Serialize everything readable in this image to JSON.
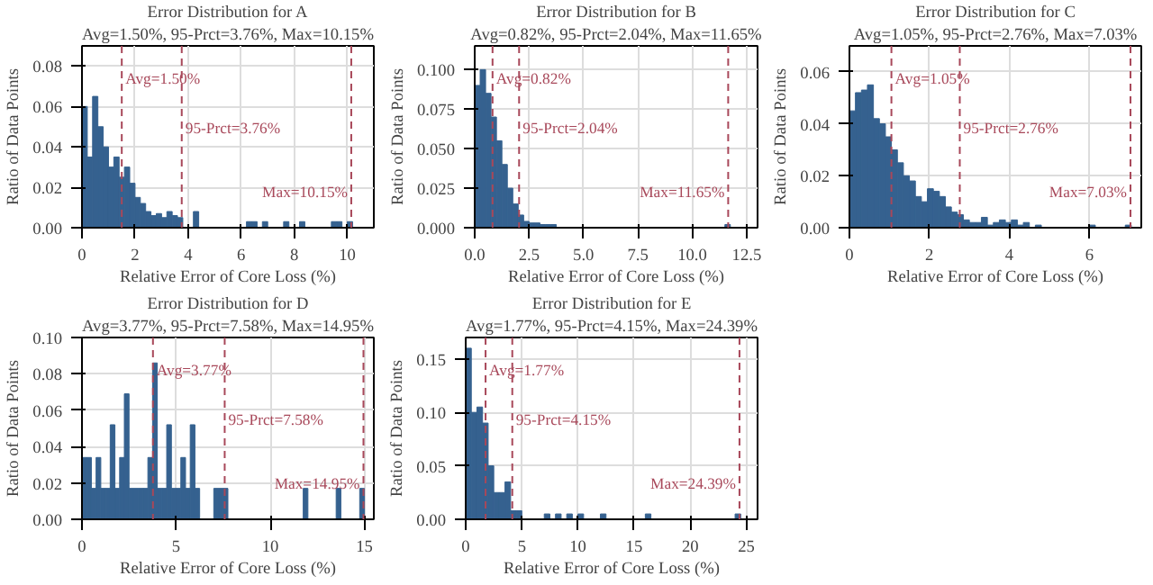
{
  "chart_data": [
    {
      "type": "histogram",
      "title": "Error Distribution for A",
      "subtitle": "Avg=1.50%, 95-Prct=3.76%, Max=10.15%",
      "xlabel": "Relative Error of Core Loss (%)",
      "ylabel": "Ratio of Data Points",
      "color": "#35618f",
      "grid": true,
      "bins": [
        0,
        0.2,
        0.4,
        0.6,
        0.8,
        1.0,
        1.2,
        1.4,
        1.6,
        1.8,
        2.0,
        2.2,
        2.4,
        2.6,
        2.8,
        3.0,
        3.2,
        3.4,
        3.6,
        3.8,
        4.0,
        4.2,
        4.4,
        4.6,
        4.8,
        5.0,
        5.2,
        5.4,
        5.6,
        5.8,
        6.0,
        6.2,
        6.4,
        6.6,
        6.8,
        7.0,
        7.2,
        7.4,
        7.6,
        7.8,
        8.0,
        8.2,
        8.4,
        8.6,
        8.8,
        9.0,
        9.2,
        9.4,
        9.6,
        9.8,
        10.0,
        10.2
      ],
      "values": [
        0.06,
        0.035,
        0.065,
        0.05,
        0.04,
        0.03,
        0.035,
        0.025,
        0.03,
        0.022,
        0.015,
        0.012,
        0.008,
        0.006,
        0.007,
        0.005,
        0.008,
        0.006,
        0.005,
        0,
        0,
        0.008,
        0,
        0,
        0,
        0,
        0,
        0,
        0,
        0,
        0,
        0.003,
        0.003,
        0,
        0.003,
        0,
        0,
        0,
        0.003,
        0,
        0,
        0.003,
        0,
        0,
        0,
        0,
        0,
        0.003,
        0.003,
        0,
        0.003
      ],
      "xlim": [
        0,
        11
      ],
      "ylim": [
        0,
        0.09
      ],
      "xticks": [
        0,
        2,
        4,
        6,
        8,
        10
      ],
      "yticks": [
        {
          "value": 0,
          "label": "0.00"
        },
        {
          "value": 0.02,
          "label": "0.02"
        },
        {
          "value": 0.04,
          "label": "0.04"
        },
        {
          "value": 0.06,
          "label": "0.06"
        },
        {
          "value": 0.08,
          "label": "0.08"
        }
      ],
      "ref_lines": [
        {
          "axis": "x",
          "value": 1.5,
          "label": "Avg=1.50%",
          "color": "#a8485a",
          "line_style": "dashed"
        },
        {
          "axis": "x",
          "value": 3.76,
          "label": "95-Prct=3.76%",
          "color": "#a8485a",
          "line_style": "dashed"
        },
        {
          "axis": "x",
          "value": 10.15,
          "label": "Max=10.15%",
          "color": "#a8485a",
          "line_style": "dashed"
        }
      ]
    },
    {
      "type": "histogram",
      "title": "Error Distribution for B",
      "subtitle": "Avg=0.82%, 95-Prct=2.04%, Max=11.65%",
      "xlabel": "Relative Error of Core Loss (%)",
      "ylabel": "Ratio of Data Points",
      "color": "#35618f",
      "grid": true,
      "bins": [
        0,
        0.25,
        0.5,
        0.75,
        1.0,
        1.25,
        1.5,
        1.75,
        2.0,
        2.25,
        2.5,
        2.75,
        3.0,
        3.25,
        3.5,
        3.75,
        4.0,
        4.25,
        4.5,
        4.75,
        5.0,
        5.25,
        5.5,
        5.75,
        6.0,
        6.25,
        6.5,
        6.75,
        7.0,
        7.25,
        7.5,
        7.75,
        8.0,
        8.25,
        8.5,
        8.75,
        9.0,
        9.25,
        9.5,
        9.75,
        10.0,
        10.25,
        10.5,
        10.75,
        11.0,
        11.25,
        11.5,
        11.75
      ],
      "values": [
        0.09,
        0.1,
        0.085,
        0.07,
        0.055,
        0.04,
        0.025,
        0.015,
        0.008,
        0.004,
        0.003,
        0.003,
        0.002,
        0.002,
        0.002,
        0,
        0,
        0,
        0,
        0,
        0,
        0,
        0,
        0,
        0,
        0,
        0,
        0,
        0,
        0,
        0,
        0,
        0,
        0,
        0,
        0,
        0,
        0,
        0,
        0,
        0,
        0,
        0,
        0,
        0,
        0,
        0.002
      ],
      "xlim": [
        0,
        13
      ],
      "ylim": [
        0,
        0.115
      ],
      "xticks": [
        {
          "value": 0,
          "label": "0.0"
        },
        2.5,
        {
          "value": 5,
          "label": "5.0"
        },
        7.5,
        {
          "value": 10,
          "label": "10.0"
        },
        12.5
      ],
      "yticks": [
        {
          "value": 0,
          "label": "0.000"
        },
        0.025,
        {
          "value": 0.05,
          "label": "0.050"
        },
        0.075,
        {
          "value": 0.1,
          "label": "0.100"
        }
      ],
      "ref_lines": [
        {
          "axis": "x",
          "value": 0.82,
          "label": "Avg=0.82%",
          "color": "#a8485a",
          "line_style": "dashed"
        },
        {
          "axis": "x",
          "value": 2.04,
          "label": "95-Prct=2.04%",
          "color": "#a8485a",
          "line_style": "dashed"
        },
        {
          "axis": "x",
          "value": 11.65,
          "label": "Max=11.65%",
          "color": "#a8485a",
          "line_style": "dashed"
        }
      ]
    },
    {
      "type": "histogram",
      "title": "Error Distribution for C",
      "subtitle": "Avg=1.05%, 95-Prct=2.76%, Max=7.03%",
      "xlabel": "Relative Error of Core Loss (%)",
      "ylabel": "Ratio of Data Points",
      "color": "#35618f",
      "grid": true,
      "bins": [
        0,
        0.15,
        0.3,
        0.45,
        0.6,
        0.75,
        0.9,
        1.05,
        1.2,
        1.35,
        1.5,
        1.65,
        1.8,
        1.95,
        2.1,
        2.25,
        2.4,
        2.55,
        2.7,
        2.85,
        3.0,
        3.15,
        3.3,
        3.45,
        3.6,
        3.75,
        3.9,
        4.05,
        4.2,
        4.35,
        4.5,
        4.65,
        4.8,
        4.95,
        5.1,
        5.25,
        5.4,
        5.55,
        5.7,
        5.85,
        6.0,
        6.15,
        6.3,
        6.45,
        6.6,
        6.75,
        6.9,
        7.05
      ],
      "values": [
        0.045,
        0.052,
        0.053,
        0.055,
        0.042,
        0.04,
        0.035,
        0.03,
        0.025,
        0.02,
        0.018,
        0.012,
        0.01,
        0.015,
        0.014,
        0.012,
        0.008,
        0.006,
        0.005,
        0.003,
        0.002,
        0.002,
        0.004,
        0.001,
        0.002,
        0.003,
        0.002,
        0.003,
        0.001,
        0.002,
        0,
        0.001,
        0,
        0,
        0,
        0,
        0,
        0,
        0,
        0,
        0.001,
        0,
        0,
        0,
        0,
        0,
        0.001
      ],
      "xlim": [
        0,
        7.3
      ],
      "ylim": [
        0,
        0.07
      ],
      "xticks": [
        0,
        2,
        4,
        6
      ],
      "yticks": [
        {
          "value": 0,
          "label": "0.00"
        },
        {
          "value": 0.02,
          "label": "0.02"
        },
        {
          "value": 0.04,
          "label": "0.04"
        },
        {
          "value": 0.06,
          "label": "0.06"
        }
      ],
      "ref_lines": [
        {
          "axis": "x",
          "value": 1.05,
          "label": "Avg=1.05%",
          "color": "#a8485a",
          "line_style": "dashed"
        },
        {
          "axis": "x",
          "value": 2.76,
          "label": "95-Prct=2.76%",
          "color": "#a8485a",
          "line_style": "dashed"
        },
        {
          "axis": "x",
          "value": 7.03,
          "label": "Max=7.03%",
          "color": "#a8485a",
          "line_style": "dashed"
        }
      ]
    },
    {
      "type": "histogram",
      "title": "Error Distribution for D",
      "subtitle": "Avg=3.77%, 95-Prct=7.58%, Max=14.95%",
      "xlabel": "Relative Error of Core Loss (%)",
      "ylabel": "Ratio of Data Points",
      "color": "#35618f",
      "grid": true,
      "bins": [
        0,
        0.25,
        0.5,
        0.75,
        1.0,
        1.25,
        1.5,
        1.75,
        2.0,
        2.25,
        2.5,
        2.75,
        3.0,
        3.25,
        3.5,
        3.75,
        4.0,
        4.25,
        4.5,
        4.75,
        5.0,
        5.25,
        5.5,
        5.75,
        6.0,
        6.25,
        6.5,
        6.75,
        7.0,
        7.25,
        7.5,
        7.75,
        8.0,
        8.25,
        8.5,
        8.75,
        9.0,
        9.25,
        9.5,
        9.75,
        10.0,
        10.25,
        10.5,
        10.75,
        11.0,
        11.25,
        11.5,
        11.75,
        12.0,
        12.25,
        12.5,
        12.75,
        13.0,
        13.25,
        13.5,
        13.75,
        14.0,
        14.25,
        14.5,
        14.75,
        15.0
      ],
      "values": [
        0.034,
        0.034,
        0.017,
        0.034,
        0.017,
        0.017,
        0.052,
        0.017,
        0.034,
        0.069,
        0.017,
        0.017,
        0.017,
        0.017,
        0.034,
        0.086,
        0.017,
        0.017,
        0.052,
        0.017,
        0.017,
        0.034,
        0.017,
        0.052,
        0.017,
        0,
        0,
        0,
        0.017,
        0.017,
        0.017,
        0,
        0,
        0,
        0,
        0,
        0,
        0,
        0,
        0,
        0,
        0,
        0,
        0,
        0,
        0,
        0,
        0.017,
        0,
        0,
        0,
        0,
        0,
        0,
        0.017,
        0,
        0,
        0,
        0,
        0.017
      ],
      "xlim": [
        0,
        15.5
      ],
      "ylim": [
        0,
        0.1
      ],
      "xticks": [
        0,
        5,
        10,
        15
      ],
      "yticks": [
        {
          "value": 0,
          "label": "0.00"
        },
        {
          "value": 0.02,
          "label": "0.02"
        },
        {
          "value": 0.04,
          "label": "0.04"
        },
        {
          "value": 0.06,
          "label": "0.06"
        },
        {
          "value": 0.08,
          "label": "0.08"
        },
        {
          "value": 0.1,
          "label": "0.10"
        }
      ],
      "ref_lines": [
        {
          "axis": "x",
          "value": 3.77,
          "label": "Avg=3.77%",
          "color": "#a8485a",
          "line_style": "dashed"
        },
        {
          "axis": "x",
          "value": 7.58,
          "label": "95-Prct=7.58%",
          "color": "#a8485a",
          "line_style": "dashed"
        },
        {
          "axis": "x",
          "value": 14.95,
          "label": "Max=14.95%",
          "color": "#a8485a",
          "line_style": "dashed"
        }
      ]
    },
    {
      "type": "histogram",
      "title": "Error Distribution for E",
      "subtitle": "Avg=1.77%, 95-Prct=4.15%, Max=24.39%",
      "xlabel": "Relative Error of Core Loss (%)",
      "ylabel": "Ratio of Data Points",
      "color": "#35618f",
      "grid": true,
      "bins": [
        0,
        0.5,
        1.0,
        1.5,
        2.0,
        2.5,
        3.0,
        3.5,
        4.0,
        4.5,
        5.0,
        5.5,
        6.0,
        6.5,
        7.0,
        7.5,
        8.0,
        8.5,
        9.0,
        9.5,
        10.0,
        10.5,
        11.0,
        11.5,
        12.0,
        12.5,
        13.0,
        13.5,
        14.0,
        14.5,
        15.0,
        15.5,
        16.0,
        16.5,
        17.0,
        17.5,
        18.0,
        18.5,
        19.0,
        19.5,
        20.0,
        20.5,
        21.0,
        21.5,
        22.0,
        22.5,
        23.0,
        23.5,
        24.0,
        24.5
      ],
      "values": [
        0.16,
        0.1,
        0.105,
        0.09,
        0.05,
        0.025,
        0.025,
        0.035,
        0.008,
        0.008,
        0,
        0,
        0,
        0,
        0.005,
        0,
        0.005,
        0,
        0.005,
        0,
        0.005,
        0,
        0,
        0,
        0.005,
        0,
        0,
        0,
        0,
        0,
        0,
        0,
        0.005,
        0,
        0,
        0,
        0,
        0,
        0,
        0,
        0,
        0,
        0,
        0,
        0,
        0,
        0,
        0,
        0.005
      ],
      "xlim": [
        0,
        26
      ],
      "ylim": [
        0,
        0.17
      ],
      "xticks": [
        0,
        5,
        10,
        15,
        20,
        25
      ],
      "yticks": [
        {
          "value": 0,
          "label": "0.00"
        },
        {
          "value": 0.05,
          "label": "0.05"
        },
        {
          "value": 0.1,
          "label": "0.10"
        },
        {
          "value": 0.15,
          "label": "0.15"
        }
      ],
      "ref_lines": [
        {
          "axis": "x",
          "value": 1.77,
          "label": "Avg=1.77%",
          "color": "#a8485a",
          "line_style": "dashed"
        },
        {
          "axis": "x",
          "value": 4.15,
          "label": "95-Prct=4.15%",
          "color": "#a8485a",
          "line_style": "dashed"
        },
        {
          "axis": "x",
          "value": 24.39,
          "label": "Max=24.39%",
          "color": "#a8485a",
          "line_style": "dashed"
        }
      ]
    }
  ]
}
